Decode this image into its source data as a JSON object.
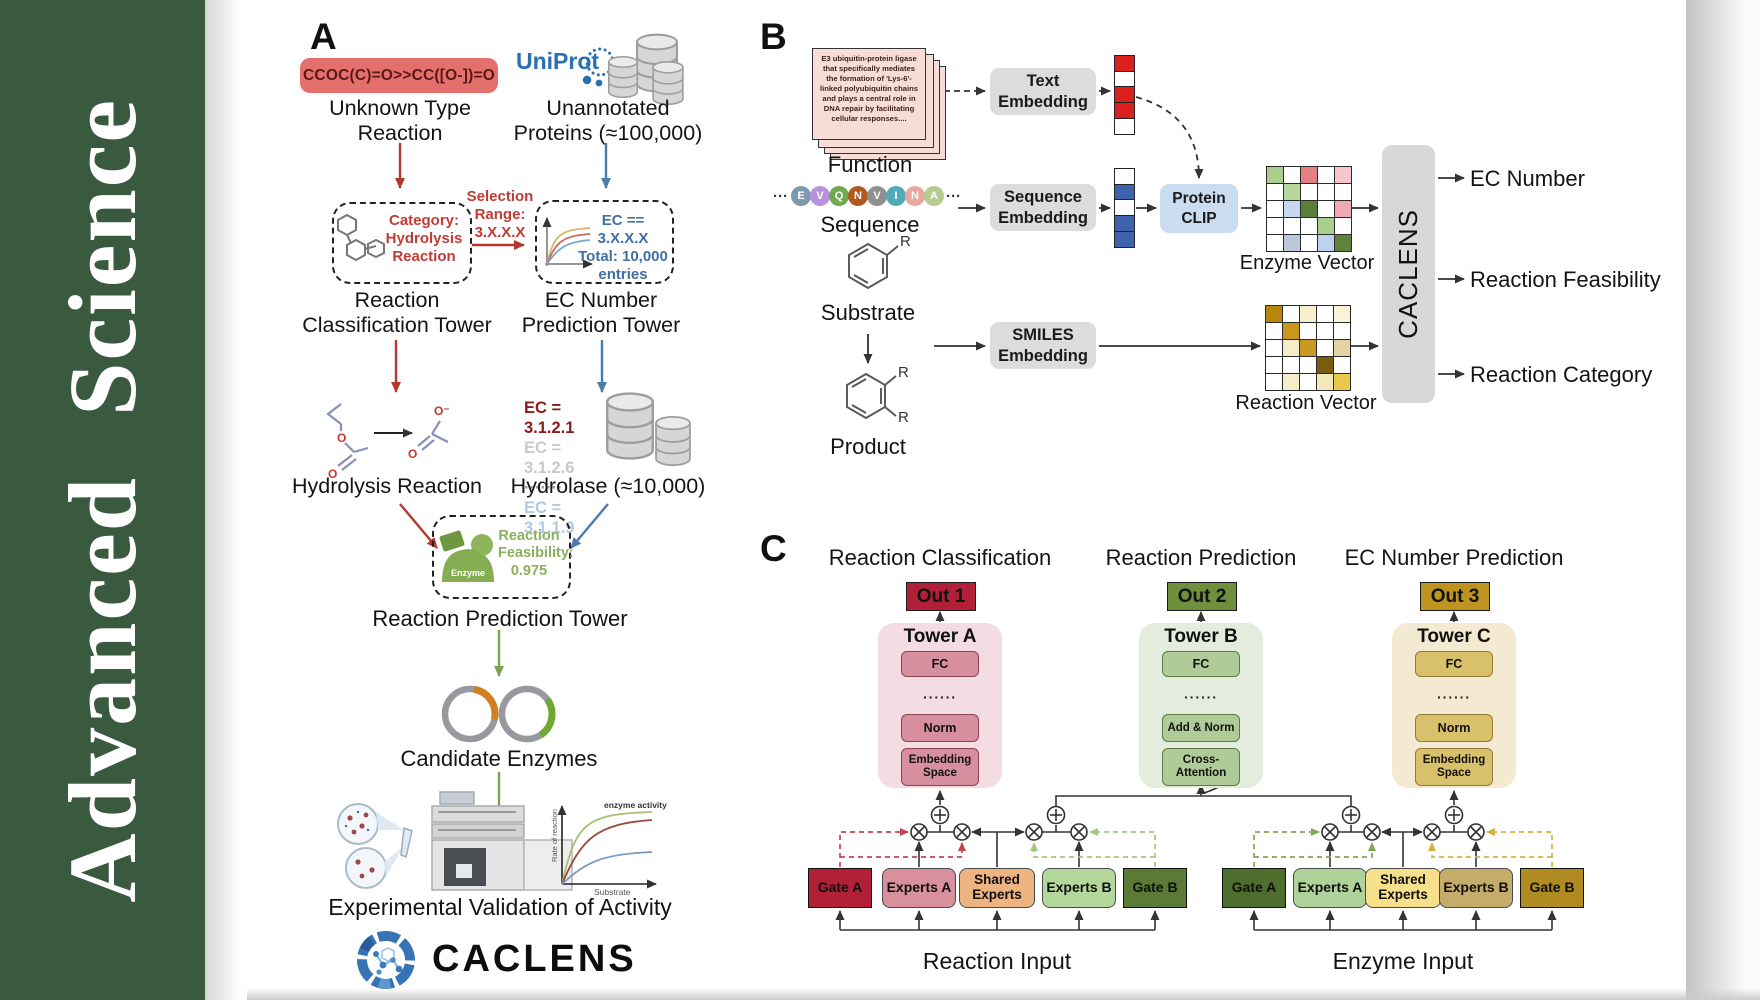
{
  "journal": {
    "title": "Advanced Science",
    "sidebar_bg": "#3A5A40"
  },
  "colors": {
    "sidebar_green": "#3A5A40",
    "smiles_pill": "#E4706E",
    "red_accent": "#B5382F",
    "blue_accent": "#4A7CAD",
    "green_accent": "#7BA154",
    "gray_box": "#DCDCDC",
    "protein_clip": "#C9DCF0",
    "caclens_gray": "#D8D8D8",
    "tower_a": "#F3DCE2",
    "tower_b": "#E4EDDD",
    "tower_c": "#F3EAD1",
    "out1": "#B22038",
    "out2": "#6E8F3B",
    "out3": "#BE9320"
  },
  "panel_a": {
    "label": "A",
    "smiles": "CCOC(C)=O>>CC([O-])=O",
    "unknown_reaction": "Unknown Type\nReaction",
    "uniprot": "UniProt",
    "unannotated": "Unannotated\nProteins (≈100,000)",
    "category_box": "Category:\nHydrolysis\nReaction",
    "selection": "Selection\nRange:\n3.X.X.X",
    "ec_box": "EC == 3.X.X.X\nTotal: 10,000\nentries",
    "classification_tower": "Reaction\nClassification Tower",
    "ec_tower": "EC Number\nPrediction Tower",
    "ec_list": [
      {
        "text": "EC = 3.1.2.1",
        "color": "#8B1A1A"
      },
      {
        "text": "EC = 3.1.2.6",
        "color": "#C9C9C9"
      },
      {
        "text": "·······",
        "color": "#9A9A9A"
      },
      {
        "text": "EC = 3.1.1.9",
        "color": "#AFC9E4"
      }
    ],
    "hydrolysis": "Hydrolysis Reaction",
    "hydrolase": "Hydrolase (≈10,000)",
    "enzyme_badge": "Enzyme",
    "feasibility": "Reaction\nFeasibility:\n0.975",
    "prediction_tower": "Reaction Prediction Tower",
    "candidates": "Candidate Enzymes",
    "validation": "Experimental Validation of Activity",
    "logo_text": "CACLENS",
    "graph": {
      "curve_label": "enzyme activity",
      "y_label": "Rate of reaction",
      "x_label": "Substrate"
    }
  },
  "panel_b": {
    "label": "B",
    "function_card": "E3 ubiquitin-protein ligase that specifically mediates the formation of 'Lys-6'-linked polyubiquitin chains and plays a central role in DNA repair by facilitating cellular responses....",
    "function": "Function",
    "dots_leading": "···",
    "dots_trailing": "···",
    "tokens": [
      {
        "letter": "E",
        "color": "#7E98B0"
      },
      {
        "letter": "V",
        "color": "#B592DB"
      },
      {
        "letter": "Q",
        "color": "#6FAA4E"
      },
      {
        "letter": "N",
        "color": "#B05A21"
      },
      {
        "letter": "V",
        "color": "#8F8F8F"
      },
      {
        "letter": "I",
        "color": "#53AAB6"
      },
      {
        "letter": "N",
        "color": "#E8A7A0"
      },
      {
        "letter": "A",
        "color": "#B6CC8F"
      }
    ],
    "sequence": "Sequence",
    "substrate": "Substrate",
    "product": "Product",
    "atoms": {
      "r": "R"
    },
    "embed_text": "Text\nEmbedding",
    "embed_seq": "Sequence\nEmbedding",
    "embed_smiles": "SMILES\nEmbedding",
    "protein_clip": "Protein\nCLIP",
    "text_vector": [
      "#DC1F1F",
      "#FFFFFF",
      "#DC1F1F",
      "#DC1F1F",
      "#FFFFFF"
    ],
    "seq_vector": [
      "#FFFFFF",
      "#3F62AE",
      "#FFFFFF",
      "#3F62AE",
      "#3F62AE"
    ],
    "enzyme_matrix": {
      "label": "Enzyme Vector",
      "cells": [
        [
          "#A9CF8F",
          "#FFFFFF",
          "#E58080",
          "#FFFFFF",
          "#F4C6CE"
        ],
        [
          "#FFFFFF",
          "#B5D79C",
          "#FFFFFF",
          "#FFFFFF",
          "#FFFFFF"
        ],
        [
          "#FFFFFF",
          "#C5D8EF",
          "#5B7E3B",
          "#FFFFFF",
          "#EFA9B1"
        ],
        [
          "#FFFFFF",
          "#FFFFFF",
          "#FFFFFF",
          "#A9CF8F",
          "#FFFFFF"
        ],
        [
          "#FFFFFF",
          "#BBC8D8",
          "#FFFFFF",
          "#BDD2EB",
          "#61813D"
        ]
      ]
    },
    "reaction_matrix": {
      "label": "Reaction Vector",
      "cells": [
        [
          "#B8860B",
          "#FFFFFF",
          "#F7F0CF",
          "#FFFFFF",
          "#F9F3D8"
        ],
        [
          "#FFFFFF",
          "#C9971C",
          "#FFFFFF",
          "#FFFFFF",
          "#FFFFFF"
        ],
        [
          "#FFFFFF",
          "#F5ECC8",
          "#C79A25",
          "#FFFFFF",
          "#E4D4A3"
        ],
        [
          "#FFFFFF",
          "#FFFFFF",
          "#FFFFFF",
          "#7A5C10",
          "#FFFFFF"
        ],
        [
          "#FFFFFF",
          "#F5EECB",
          "#FFFFFF",
          "#F3E8B9",
          "#E9C94B"
        ]
      ]
    },
    "caclens": "CACLENS",
    "outputs": [
      "EC Number",
      "Reaction Feasibility",
      "Reaction Category"
    ]
  },
  "panel_c": {
    "label": "C",
    "columns": [
      {
        "title": "Reaction Classification",
        "out": "Out 1",
        "tower": "Tower A",
        "layers": [
          "FC",
          "······",
          "Norm",
          "Embedding\nSpace"
        ]
      },
      {
        "title": "Reaction Prediction",
        "out": "Out 2",
        "tower": "Tower B",
        "layers": [
          "FC",
          "······",
          "Add & Norm",
          "Cross-\nAttention"
        ]
      },
      {
        "title": "EC Number Prediction",
        "out": "Out 3",
        "tower": "Tower C",
        "layers": [
          "FC",
          "······",
          "Norm",
          "Embedding\nSpace"
        ]
      }
    ],
    "groups": [
      {
        "label": "Reaction Input",
        "boxes": [
          {
            "label": "Gate A",
            "bg": "#B22038"
          },
          {
            "label": "Experts A",
            "bg": "#D9909D"
          },
          {
            "label": "Shared\nExperts",
            "bg": "#EDB381"
          },
          {
            "label": "Experts B",
            "bg": "#B4D79C"
          },
          {
            "label": "Gate B",
            "bg": "#5A7A35"
          }
        ]
      },
      {
        "label": "Enzyme Input",
        "boxes": [
          {
            "label": "Gate A",
            "bg": "#4E6E2E"
          },
          {
            "label": "Experts A",
            "bg": "#AED299"
          },
          {
            "label": "Shared\nExperts",
            "bg": "#F7E08C"
          },
          {
            "label": "Experts B",
            "bg": "#C5AC6B"
          },
          {
            "label": "Gate B",
            "bg": "#B08B22"
          }
        ]
      }
    ]
  }
}
